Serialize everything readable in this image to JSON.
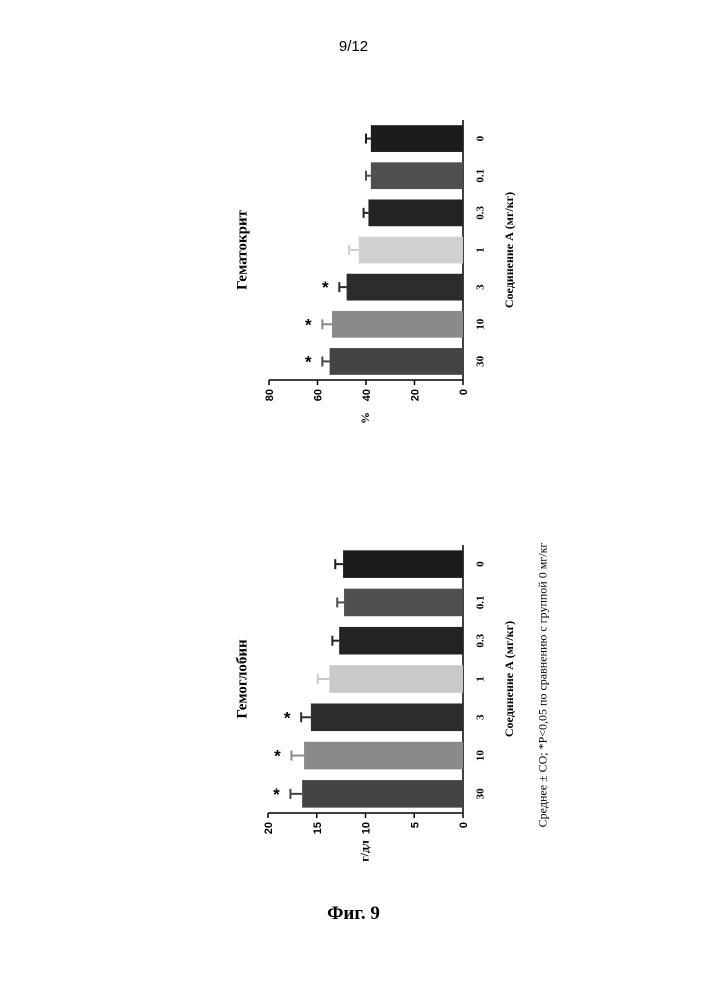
{
  "page_number": "9/12",
  "figure_caption": "Фиг. 9",
  "footnote": "Среднее ± СО; *Р<0,05 по сравнению с группой 0 мг/кг",
  "chart_data": [
    {
      "id": "hemoglobin",
      "type": "bar",
      "title": "Гемоглобин",
      "xlabel": "Соединение А (мг/кг)",
      "ylabel": "г/дл",
      "categories": [
        "0",
        "0.1",
        "0.3",
        "1",
        "3",
        "10",
        "30"
      ],
      "values": [
        12.3,
        12.2,
        12.7,
        13.7,
        15.6,
        16.3,
        16.5
      ],
      "errors": [
        0.8,
        0.7,
        0.7,
        1.2,
        1.0,
        1.3,
        1.2
      ],
      "significant": [
        false,
        false,
        false,
        false,
        true,
        true,
        true
      ],
      "significance_marker": "*",
      "bar_colors": [
        "#1c1c1c",
        "#4f4f4f",
        "#232323",
        "#c9c9c9",
        "#2c2c2c",
        "#8a8a8a",
        "#444444"
      ],
      "ylim": [
        0,
        20
      ],
      "yticks": [
        0,
        5,
        10,
        15,
        20
      ],
      "orientation": "rotated -90°"
    },
    {
      "id": "hematocrit",
      "type": "bar",
      "title": "Гематокрит",
      "xlabel": "Соединение А (мг/кг)",
      "ylabel": "%",
      "categories": [
        "0",
        "0.1",
        "0.3",
        "1",
        "3",
        "10",
        "30"
      ],
      "values": [
        38,
        38,
        39,
        43,
        48,
        54,
        55
      ],
      "errors": [
        2,
        2,
        2,
        4,
        3,
        4,
        3
      ],
      "significant": [
        false,
        false,
        false,
        false,
        true,
        true,
        true
      ],
      "significance_marker": "*",
      "bar_colors": [
        "#1c1c1c",
        "#4f4f4f",
        "#232323",
        "#d0d0d0",
        "#2c2c2c",
        "#8a8a8a",
        "#444444"
      ],
      "ylim": [
        0,
        80
      ],
      "yticks": [
        0,
        20,
        40,
        60,
        80
      ],
      "orientation": "rotated -90°"
    }
  ]
}
